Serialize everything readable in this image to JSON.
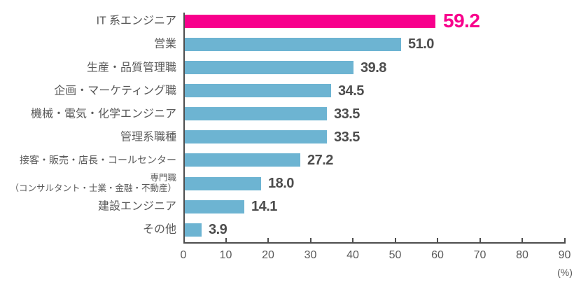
{
  "chart_data": {
    "type": "bar",
    "orientation": "horizontal",
    "title": "",
    "xlabel": "",
    "ylabel": "",
    "unit_label": "(%)",
    "xlim": [
      0,
      90
    ],
    "xticks": [
      0,
      10,
      20,
      30,
      40,
      50,
      60,
      70,
      80,
      90
    ],
    "grid": false,
    "legend": null,
    "highlight_index": 0,
    "colors": {
      "highlight_bar": "#f8008c",
      "highlight_value": "#f8008c",
      "bar": "#6db4d2",
      "axis": "#4d4d4d",
      "category_label": "#595959",
      "value_label": "#4d4d4d",
      "tick_label": "#595959",
      "background": "#ffffff"
    },
    "categories": [
      "IT 系エンジニア",
      "営業",
      "生産・品質管理職",
      "企画・マーケティング職",
      "機械・電気・化学エンジニア",
      "管理系職種",
      "接客・販売・店長・コールセンター",
      "専門職\n（コンサルタント・士業・金融・不動産）",
      "建設エンジニア",
      "その他"
    ],
    "values": [
      59.2,
      51.0,
      39.8,
      34.5,
      33.5,
      33.5,
      27.2,
      18.0,
      14.1,
      3.9
    ],
    "value_labels": [
      "59.2",
      "51.0",
      "39.8",
      "34.5",
      "33.5",
      "33.5",
      "27.2",
      "18.0",
      "14.1",
      "3.9"
    ]
  }
}
